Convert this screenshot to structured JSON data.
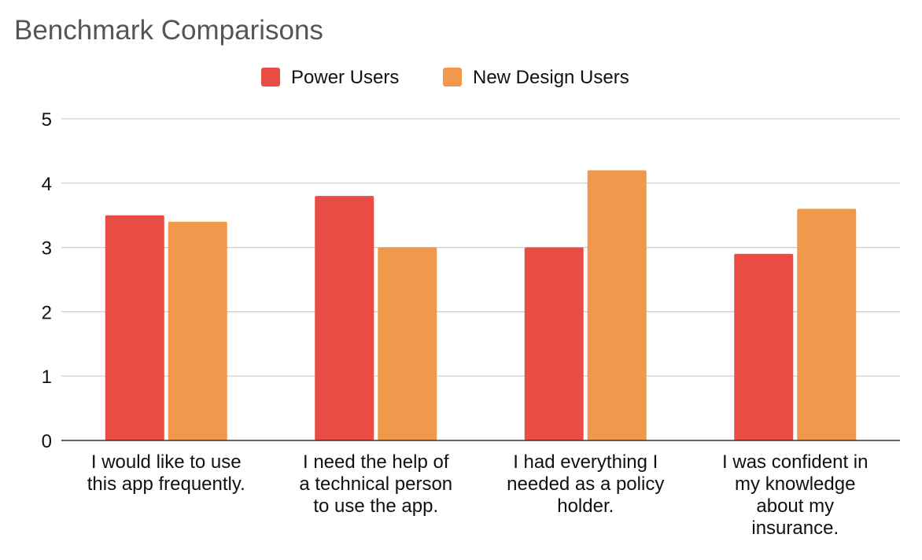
{
  "chart_data": {
    "type": "bar",
    "title": "Benchmark Comparisons",
    "xlabel": "",
    "ylabel": "",
    "ylim": [
      0,
      5
    ],
    "yticks": [
      0,
      1,
      2,
      3,
      4,
      5
    ],
    "grid": true,
    "legend_position": "top-center",
    "categories": [
      [
        "I would like to use",
        "this app frequently."
      ],
      [
        "I need the help of",
        "a technical person",
        "to use the app."
      ],
      [
        "I had everything I",
        "needed as a policy",
        "holder."
      ],
      [
        "I was confident in",
        "my knowledge",
        "about my",
        "insurance."
      ]
    ],
    "series": [
      {
        "name": "Power Users",
        "color": "#E94C42",
        "values": [
          3.5,
          3.8,
          3.0,
          2.9
        ]
      },
      {
        "name": "New Design Users",
        "color": "#F0984B",
        "values": [
          3.4,
          3.0,
          4.2,
          3.6
        ]
      }
    ]
  }
}
